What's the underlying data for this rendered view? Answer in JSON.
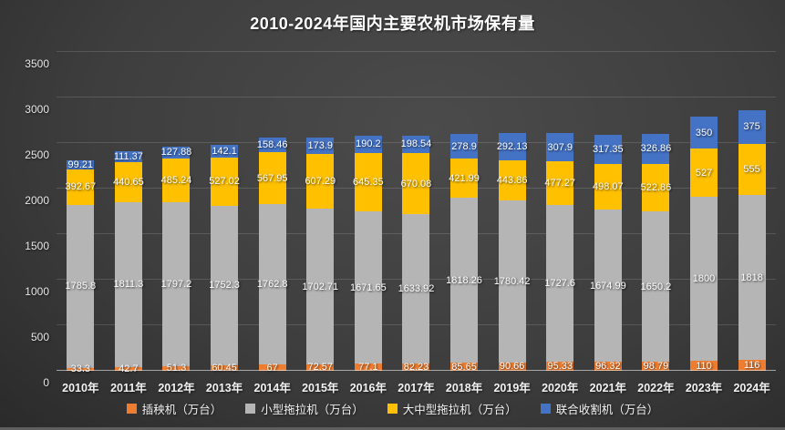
{
  "chart_data": {
    "type": "bar",
    "stacked": true,
    "title": "2010-2024年国内主要农机市场保有量",
    "categories": [
      "2010年",
      "2011年",
      "2012年",
      "2013年",
      "2014年",
      "2015年",
      "2016年",
      "2017年",
      "2018年",
      "2019年",
      "2020年",
      "2021年",
      "2022年",
      "2023年",
      "2024年"
    ],
    "series": [
      {
        "name": "插秧机（万台）",
        "color": "#ED7D31",
        "values": [
          33.3,
          42.7,
          51.3,
          60.45,
          67,
          72.57,
          77.1,
          82.23,
          85.65,
          90.66,
          95.33,
          96.32,
          98.79,
          110,
          116
        ]
      },
      {
        "name": "小型拖拉机（万台）",
        "color": "#B5B5B5",
        "values": [
          1785.8,
          1811.3,
          1797.2,
          1752.3,
          1762.8,
          1702.71,
          1671.65,
          1633.92,
          1818.26,
          1780.42,
          1727.6,
          1674.99,
          1650.2,
          1800,
          1818
        ]
      },
      {
        "name": "大中型拖拉机（万台）",
        "color": "#FFC000",
        "values": [
          392.67,
          440.65,
          485.24,
          527.02,
          567.95,
          607.29,
          645.35,
          670.08,
          421.99,
          443.86,
          477.27,
          498.07,
          522.86,
          527,
          555
        ]
      },
      {
        "name": "联合收割机（万台）",
        "color": "#4472C4",
        "values": [
          99.21,
          111.37,
          127.88,
          142.1,
          158.46,
          173.9,
          190.2,
          198.54,
          278.9,
          292.13,
          307.9,
          317.35,
          326.86,
          350,
          375
        ]
      }
    ],
    "y_ticks": [
      0,
      500,
      1000,
      1500,
      2000,
      2500,
      3000,
      3500
    ],
    "ylim": [
      0,
      3500
    ],
    "grid": true,
    "legend_position": "bottom",
    "background_color": "#3e3e3e",
    "text_color": "#ffffff"
  }
}
